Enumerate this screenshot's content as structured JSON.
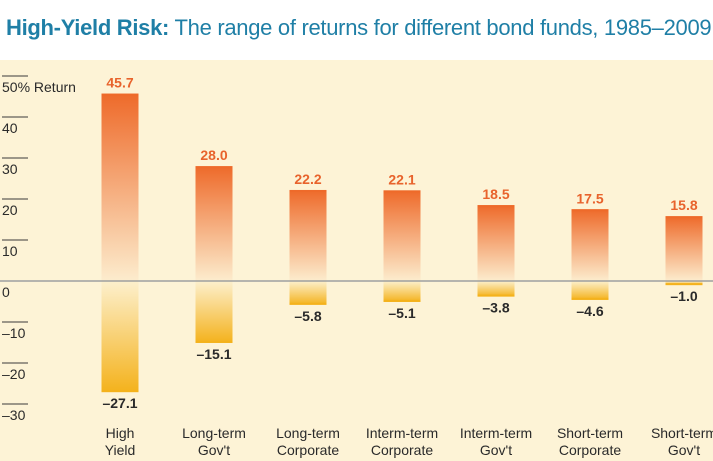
{
  "title_bold": "High-Yield Risk:",
  "title_rest": " The range of returns for different bond funds, 1985–2009.",
  "colors": {
    "title": "#1f7fa6",
    "background": "#fdf3d6",
    "positive_bar": "#ee6a2a",
    "negative_bar": "#f4b21c",
    "zero_line": "#8a8f96",
    "positive_label": "#e8632c"
  },
  "chart_data": {
    "type": "bar",
    "title": "High-Yield Risk: The range of returns for different bond funds, 1985–2009.",
    "ylabel": "% Return",
    "ylim": [
      -30,
      50
    ],
    "y_ticks": [
      50,
      40,
      30,
      20,
      10,
      0,
      -10,
      -20,
      -30
    ],
    "y_tick_labels": [
      "50% Return",
      "40",
      "30",
      "20",
      "10",
      "0",
      "–10",
      "–20",
      "–30"
    ],
    "categories": [
      [
        "High",
        "Yield"
      ],
      [
        "Long-term",
        "Gov't"
      ],
      [
        "Long-term",
        "Corporate"
      ],
      [
        "Interm-term",
        "Corporate"
      ],
      [
        "Interm-term",
        "Gov't"
      ],
      [
        "Short-term",
        "Corporate"
      ],
      [
        "Short-term",
        "Gov't"
      ]
    ],
    "high": [
      45.7,
      28.0,
      22.2,
      22.1,
      18.5,
      17.5,
      15.8
    ],
    "low": [
      -27.1,
      -15.1,
      -5.8,
      -5.1,
      -3.8,
      -4.6,
      -1.0
    ],
    "high_labels": [
      "45.7",
      "28.0",
      "22.2",
      "22.1",
      "18.5",
      "17.5",
      "15.8"
    ],
    "low_labels": [
      "–27.1",
      "–15.1",
      "–5.8",
      "–5.1",
      "–3.8",
      "–4.6",
      "–1.0"
    ],
    "grid": false,
    "legend": "none"
  }
}
